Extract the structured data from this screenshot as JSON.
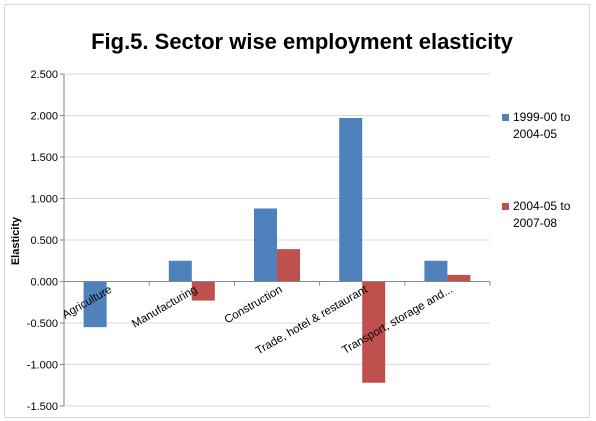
{
  "chart_data": {
    "type": "bar",
    "title": "Fig.5. Sector wise employment elasticity",
    "xlabel": "",
    "ylabel": "Elasticity",
    "categories": [
      "Agriculture",
      "Manufacturing",
      "Construction",
      "Trade, hotel & restaurant",
      "Transport, storage and..."
    ],
    "series": [
      {
        "name_lines": [
          "1999-00 to",
          "2004-05"
        ],
        "color": "#4f81bd",
        "values": [
          -0.55,
          0.25,
          0.88,
          1.97,
          0.25
        ]
      },
      {
        "name_lines": [
          "2004-05 to",
          "2007-08"
        ],
        "color": "#c0504d",
        "values": [
          0.0,
          -0.23,
          0.39,
          -1.22,
          0.08
        ]
      }
    ],
    "ylim": [
      -1.5,
      2.5
    ],
    "yticks": [
      "2.500",
      "2.000",
      "1.500",
      "1.000",
      "0.500",
      "0.000",
      "-0.500",
      "-1.000",
      "-1.500"
    ],
    "grid": true,
    "legend_position": "right"
  }
}
